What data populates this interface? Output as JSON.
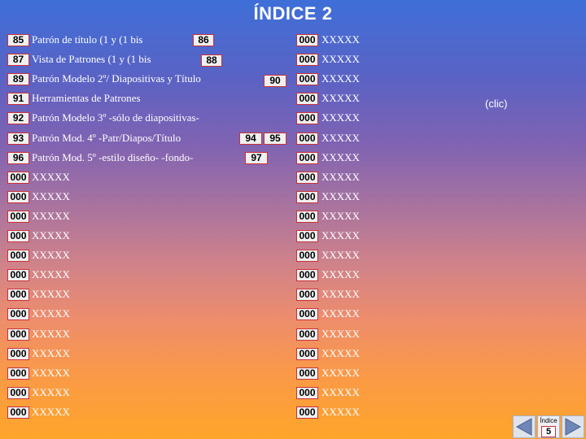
{
  "title": "ÍNDICE 2",
  "clic_note": "(clic)",
  "left_rows": [
    {
      "num": "85",
      "text": "Patrón de título (1 y (1 bis"
    },
    {
      "num": "87",
      "text": "Vista de Patrones (1 y (1 bis"
    },
    {
      "num": "89",
      "text": "Patrón Modelo 2º/ Diapositivas y Título"
    },
    {
      "num": "91",
      "text": "Herramientas de Patrones"
    },
    {
      "num": "92",
      "text": "Patrón Modelo 3º -sólo de diapositivas-"
    },
    {
      "num": "93",
      "text": "Patrón Mod. 4º -Patr/Diapos/Título"
    },
    {
      "num": "96",
      "text": "Patrón Mod. 5º -estilo diseño- -fondo-"
    },
    {
      "num": "000",
      "text": "XXXXX"
    },
    {
      "num": "000",
      "text": "XXXXX"
    },
    {
      "num": "000",
      "text": "XXXXX"
    },
    {
      "num": "000",
      "text": "XXXXX"
    },
    {
      "num": "000",
      "text": "XXXXX"
    },
    {
      "num": "000",
      "text": "XXXXX"
    },
    {
      "num": "000",
      "text": "XXXXX"
    },
    {
      "num": "000",
      "text": "XXXXX"
    },
    {
      "num": "000",
      "text": "XXXXX"
    },
    {
      "num": "000",
      "text": "XXXXX"
    },
    {
      "num": "000",
      "text": "XXXXX"
    },
    {
      "num": "000",
      "text": "XXXXX"
    },
    {
      "num": "000",
      "text": "XXXXX"
    }
  ],
  "right_rows": [
    {
      "num": "000",
      "text": "XXXXX"
    },
    {
      "num": "000",
      "text": "XXXXX"
    },
    {
      "num": "000",
      "text": "XXXXX"
    },
    {
      "num": "000",
      "text": "XXXXX"
    },
    {
      "num": "000",
      "text": "XXXXX"
    },
    {
      "num": "000",
      "text": "XXXXX"
    },
    {
      "num": "000",
      "text": "XXXXX"
    },
    {
      "num": "000",
      "text": "XXXXX"
    },
    {
      "num": "000",
      "text": "XXXXX"
    },
    {
      "num": "000",
      "text": "XXXXX"
    },
    {
      "num": "000",
      "text": "XXXXX"
    },
    {
      "num": "000",
      "text": "XXXXX"
    },
    {
      "num": "000",
      "text": "XXXXX"
    },
    {
      "num": "000",
      "text": "XXXXX"
    },
    {
      "num": "000",
      "text": "XXXXX"
    },
    {
      "num": "000",
      "text": "XXXXX"
    },
    {
      "num": "000",
      "text": "XXXXX"
    },
    {
      "num": "000",
      "text": "XXXXX"
    },
    {
      "num": "000",
      "text": "XXXXX"
    },
    {
      "num": "000",
      "text": "XXXXX"
    }
  ],
  "extra_badges": {
    "b86": "86",
    "b88": "88",
    "b90": "90",
    "b94": "94",
    "b95": "95",
    "b97": "97"
  },
  "nav": {
    "index_label": "Índice",
    "index_number": "5",
    "prev_icon": "triangle-left-icon",
    "next_icon": "triangle-right-icon"
  },
  "colors": {
    "badge_border": "#c8323b",
    "badge_fill": "#f0f0f0",
    "text": "#ffffff"
  }
}
